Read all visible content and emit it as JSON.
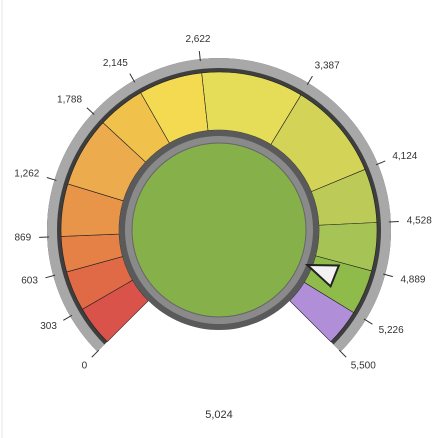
{
  "chart_data": {
    "type": "gauge",
    "ylim": [
      0,
      5500
    ],
    "yticks": [
      0,
      303,
      603,
      869,
      {
        "value": 1262,
        "label": "1,262"
      },
      {
        "value": 1788,
        "label": "1,788"
      },
      {
        "value": 2145,
        "label": "2,145"
      },
      {
        "value": 2622,
        "label": "2,622"
      },
      {
        "value": 3387,
        "label": "3,387"
      },
      {
        "value": 4124,
        "label": "4,124"
      },
      {
        "value": 4528,
        "label": "4,528"
      },
      {
        "value": 4889,
        "label": "4,889"
      },
      {
        "value": 5226,
        "label": "5,226"
      },
      {
        "value": 5500,
        "label": "5,500"
      }
    ],
    "bands": [
      {
        "from": 0,
        "to": 303,
        "color": "#d9534a"
      },
      {
        "from": 303,
        "to": 603,
        "color": "#e06a46"
      },
      {
        "from": 603,
        "to": 869,
        "color": "#e58047"
      },
      {
        "from": 869,
        "to": 1262,
        "color": "#e8954a"
      },
      {
        "from": 1262,
        "to": 1788,
        "color": "#ecab4c"
      },
      {
        "from": 1788,
        "to": 2145,
        "color": "#f0c24c"
      },
      {
        "from": 2145,
        "to": 2622,
        "color": "#f3da50"
      },
      {
        "from": 2622,
        "to": 3387,
        "color": "#e5dc57"
      },
      {
        "from": 3387,
        "to": 4124,
        "color": "#d3d457"
      },
      {
        "from": 4124,
        "to": 4528,
        "color": "#bccb57"
      },
      {
        "from": 4528,
        "to": 4889,
        "color": "#a6c455"
      },
      {
        "from": 4889,
        "to": 5226,
        "color": "#8fbb4a"
      },
      {
        "from": 5226,
        "to": 5500,
        "color": "#b08fd8"
      }
    ],
    "value": 5024,
    "value_label": "5,024",
    "color": "#86b04a"
  }
}
